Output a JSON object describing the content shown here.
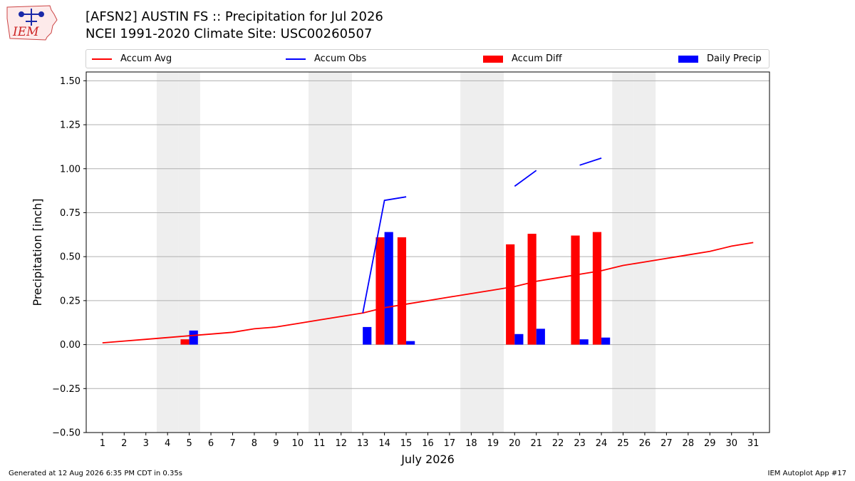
{
  "header": {
    "title": "[AFSN2] AUSTIN FS :: Precipitation for Jul 2026",
    "subtitle": "NCEI 1991-2020 Climate Site: USC00260507",
    "logo_text": "IEM"
  },
  "footer": {
    "left": "Generated at 12 Aug 2026 6:35 PM CDT in 0.35s",
    "right": "IEM Autoplot App #17"
  },
  "legend": {
    "accum_avg": "Accum Avg",
    "accum_obs": "Accum Obs",
    "accum_diff": "Accum Diff",
    "daily_precip": "Daily Precip"
  },
  "colors": {
    "accum_avg": "#ff0000",
    "accum_obs": "#0000ff",
    "accum_diff": "#ff0000",
    "daily_precip": "#0000ff",
    "weekend_shade": "#eeeeee",
    "grid": "#b0b0b0"
  },
  "chart_data": {
    "type": "bar",
    "xlabel": "July 2026",
    "ylabel": "Precipitation [inch]",
    "ylim": [
      -0.5,
      1.55
    ],
    "yticks": [
      -0.5,
      -0.25,
      0.0,
      0.25,
      0.5,
      0.75,
      1.0,
      1.25,
      1.5
    ],
    "ytick_labels": [
      "−0.50",
      "−0.25",
      "0.00",
      "0.25",
      "0.50",
      "0.75",
      "1.00",
      "1.25",
      "1.50"
    ],
    "days": [
      1,
      2,
      3,
      4,
      5,
      6,
      7,
      8,
      9,
      10,
      11,
      12,
      13,
      14,
      15,
      16,
      17,
      18,
      19,
      20,
      21,
      22,
      23,
      24,
      25,
      26,
      27,
      28,
      29,
      30,
      31
    ],
    "weekend_days": [
      4,
      5,
      11,
      12,
      18,
      19,
      25,
      26
    ],
    "grid": "horizontal",
    "legend_position": "top",
    "series": [
      {
        "name": "Accum Avg",
        "kind": "line",
        "x": [
          1,
          2,
          3,
          4,
          5,
          6,
          7,
          8,
          9,
          10,
          11,
          12,
          13,
          14,
          15,
          16,
          17,
          18,
          19,
          20,
          21,
          22,
          23,
          24,
          25,
          26,
          27,
          28,
          29,
          30,
          31
        ],
        "values": [
          0.01,
          0.02,
          0.03,
          0.04,
          0.05,
          0.06,
          0.07,
          0.09,
          0.1,
          0.12,
          0.14,
          0.16,
          0.18,
          0.21,
          0.23,
          0.25,
          0.27,
          0.29,
          0.31,
          0.33,
          0.36,
          0.38,
          0.4,
          0.42,
          0.45,
          0.47,
          0.49,
          0.51,
          0.53,
          0.56,
          0.58
        ]
      },
      {
        "name": "Accum Obs",
        "kind": "line",
        "segments": [
          {
            "x": [
              13,
              14,
              15
            ],
            "values": [
              0.18,
              0.82,
              0.84
            ]
          },
          {
            "x": [
              20,
              21
            ],
            "values": [
              0.9,
              0.99
            ]
          },
          {
            "x": [
              23,
              24
            ],
            "values": [
              1.02,
              1.06
            ]
          }
        ]
      },
      {
        "name": "Accum Diff",
        "kind": "bar",
        "x": [
          5,
          14,
          15,
          20,
          21,
          23,
          24
        ],
        "values": [
          0.03,
          0.61,
          0.61,
          0.57,
          0.63,
          0.62,
          0.64
        ]
      },
      {
        "name": "Daily Precip",
        "kind": "bar",
        "x": [
          5,
          13,
          14,
          15,
          20,
          21,
          23,
          24
        ],
        "values": [
          0.08,
          0.1,
          0.64,
          0.02,
          0.06,
          0.09,
          0.03,
          0.04
        ]
      }
    ]
  }
}
